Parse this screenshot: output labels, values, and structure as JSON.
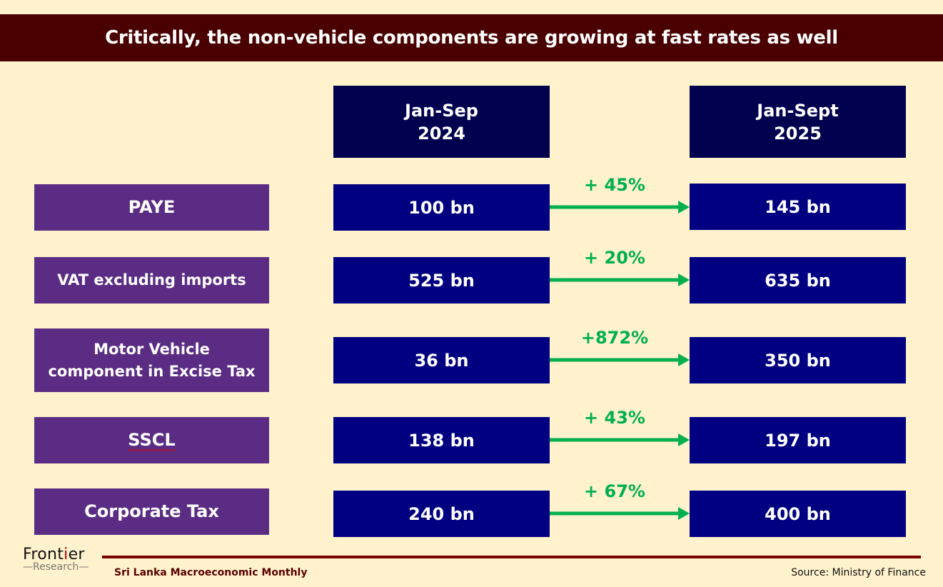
{
  "title": "Critically, the non-vehicle components are growing at fast rates as well",
  "columns": [
    {
      "line1": "Jan-Sep",
      "line2": "2024"
    },
    {
      "line1": "Jan-Sept",
      "line2": "2025"
    }
  ],
  "rows": [
    {
      "label": "PAYE",
      "v2024": "100 bn",
      "v2025": "145 bn",
      "growth": "+ 45%"
    },
    {
      "label": "VAT excluding imports",
      "v2024": "525 bn",
      "v2025": "635 bn",
      "growth": "+ 20%"
    },
    {
      "label": "Motor Vehicle component in Excise Tax",
      "v2024": "36 bn",
      "v2025": "350 bn",
      "growth": "+872%"
    },
    {
      "label": "SSCL",
      "v2024": "138 bn",
      "v2025": "197 bn",
      "growth": "+ 43%"
    },
    {
      "label": "Corporate Tax",
      "v2024": "240 bn",
      "v2025": "400 bn",
      "growth": "+ 67%"
    }
  ],
  "footer": {
    "logo_top": "Frontier",
    "logo_bottom": "Research",
    "publication": "Sri Lanka Macroeconomic Monthly",
    "source": "Source: Ministry of Finance"
  },
  "colors": {
    "title_bg": "#4A0000",
    "label_bg": "#5B2C83",
    "value_bg": "#000080",
    "header_bg": "#00004F",
    "growth": "#00B050",
    "page_bg": "#FFF2CC"
  }
}
